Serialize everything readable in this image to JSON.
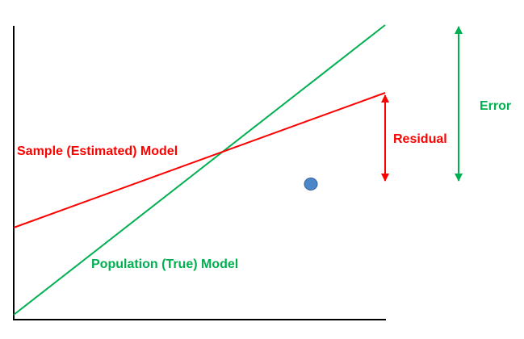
{
  "labels": {
    "sample_model": "Sample (Estimated) Model",
    "population_model": "Population (True) Model",
    "residual": "Residual",
    "error": "Error"
  },
  "colors": {
    "axis": "#000000",
    "sample_line": "#ff0000",
    "population_line": "#00b050",
    "residual_arrow": "#ff0000",
    "error_arrow": "#00b050",
    "data_point_fill": "#4a86c8",
    "data_point_stroke": "#2f5f9a"
  }
}
